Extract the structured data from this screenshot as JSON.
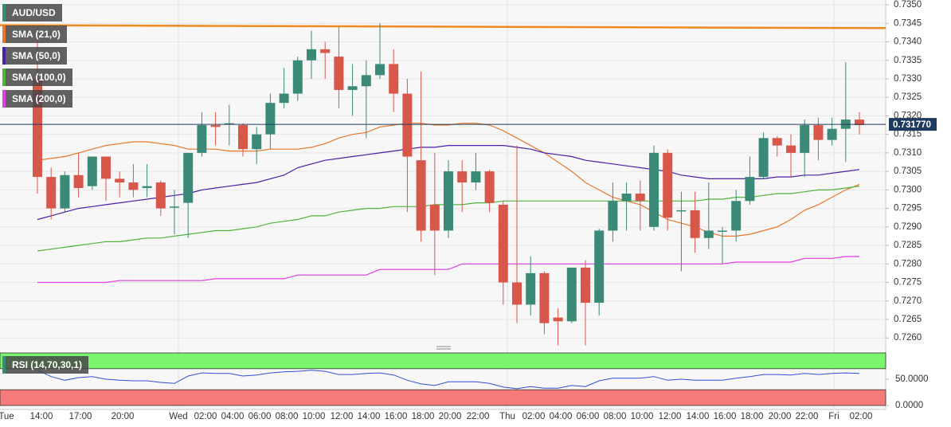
{
  "chart_data": {
    "type": "candlestick",
    "symbol": "AUD/USD",
    "up_color": "#3b8a78",
    "down_color": "#d7574b",
    "ylim": [
      0.72566,
      0.73513
    ],
    "yticks": [
      {
        "value": 0.735,
        "label": "0.7350"
      },
      {
        "value": 0.7345,
        "label": "0.7345"
      },
      {
        "value": 0.734,
        "label": "0.7340"
      },
      {
        "value": 0.7335,
        "label": "0.7335"
      },
      {
        "value": 0.733,
        "label": "0.7330"
      },
      {
        "value": 0.7325,
        "label": "0.7325"
      },
      {
        "value": 0.732,
        "label": "0.7320"
      },
      {
        "value": 0.7315,
        "label": "0.7315"
      },
      {
        "value": 0.731,
        "label": "0.7310"
      },
      {
        "value": 0.7305,
        "label": "0.7305"
      },
      {
        "value": 0.73,
        "label": "0.7300"
      },
      {
        "value": 0.7295,
        "label": "0.7295"
      },
      {
        "value": 0.729,
        "label": "0.7290"
      },
      {
        "value": 0.7285,
        "label": "0.7285"
      },
      {
        "value": 0.728,
        "label": "0.7280"
      },
      {
        "value": 0.7275,
        "label": "0.7275"
      },
      {
        "value": 0.727,
        "label": "0.7270"
      },
      {
        "value": 0.7265,
        "label": "0.7265"
      },
      {
        "value": 0.726,
        "label": "0.7260"
      }
    ],
    "grid": true,
    "last_price": {
      "value": 0.73177,
      "label": "0.731770"
    },
    "xlabels": [
      "Tue",
      "14:00",
      "17:00",
      "20:00",
      "Wed",
      "02:00",
      "04:00",
      "06:00",
      "08:00",
      "10:00",
      "12:00",
      "14:00",
      "16:00",
      "18:00",
      "20:00",
      "22:00",
      "Thu",
      "02:00",
      "04:00",
      "06:00",
      "08:00",
      "10:00",
      "12:00",
      "14:00",
      "16:00",
      "18:00",
      "20:00",
      "22:00",
      "Fri",
      "02:00"
    ],
    "candles": {
      "open": [
        0.733,
        0.73035,
        0.7295,
        0.7304,
        0.7301,
        0.7309,
        0.7303,
        0.7302,
        0.73005,
        0.7302,
        0.72955,
        0.72965,
        0.731,
        0.73175,
        0.7318,
        0.73175,
        0.7311,
        0.7315,
        0.73235,
        0.7326,
        0.7335,
        0.7338,
        0.7336,
        0.7327,
        0.7328,
        0.7331,
        0.7334,
        0.7326,
        0.7308,
        0.7296,
        0.7289,
        0.7305,
        0.7302,
        0.7305,
        0.7296,
        0.7275,
        0.7269,
        0.72775,
        0.72655,
        0.72645,
        0.7279,
        0.72695,
        0.7289,
        0.7297,
        0.7299,
        0.729,
        0.731,
        0.72945,
        0.72945,
        0.7287,
        0.7289,
        0.7289,
        0.7297,
        0.73035,
        0.7314,
        0.7312,
        0.731,
        0.73175,
        0.73135,
        0.73165,
        0.7319
      ],
      "high": [
        0.7344,
        0.7306,
        0.7305,
        0.731,
        0.7309,
        0.7309,
        0.7305,
        0.7307,
        0.7307,
        0.73025,
        0.73,
        0.731,
        0.7321,
        0.7321,
        0.7323,
        0.7318,
        0.7317,
        0.7326,
        0.7333,
        0.7336,
        0.7343,
        0.734,
        0.7344,
        0.7334,
        0.7335,
        0.7345,
        0.7338,
        0.733,
        0.7332,
        0.731,
        0.7308,
        0.7308,
        0.731,
        0.73055,
        0.7297,
        0.7312,
        0.7282,
        0.7278,
        0.7268,
        0.7279,
        0.7281,
        0.72895,
        0.7302,
        0.7302,
        0.73025,
        0.7312,
        0.7311,
        0.72995,
        0.72995,
        0.7302,
        0.729,
        0.73,
        0.7309,
        0.73155,
        0.73145,
        0.7315,
        0.7319,
        0.73195,
        0.73195,
        0.73345,
        0.7321
      ],
      "low": [
        0.7299,
        0.7292,
        0.7294,
        0.7298,
        0.73,
        0.7297,
        0.7298,
        0.7298,
        0.7298,
        0.7293,
        0.7288,
        0.7287,
        0.7309,
        0.7312,
        0.7312,
        0.7309,
        0.7307,
        0.7311,
        0.7322,
        0.7324,
        0.733,
        0.733,
        0.7322,
        0.732,
        0.7314,
        0.733,
        0.7321,
        0.7294,
        0.7286,
        0.7277,
        0.7287,
        0.7294,
        0.73,
        0.7294,
        0.7269,
        0.7264,
        0.7266,
        0.7261,
        0.7258,
        0.7264,
        0.7258,
        0.7266,
        0.7286,
        0.7289,
        0.7289,
        0.7289,
        0.7289,
        0.7278,
        0.7283,
        0.7284,
        0.728,
        0.7286,
        0.7296,
        0.7303,
        0.7309,
        0.73035,
        0.73035,
        0.7308,
        0.7312,
        0.73075,
        0.7315
      ],
      "close": [
        0.73035,
        0.7295,
        0.7304,
        0.73005,
        0.7309,
        0.7303,
        0.7302,
        0.73,
        0.7301,
        0.7295,
        0.72955,
        0.731,
        0.73175,
        0.7317,
        0.7318,
        0.7311,
        0.7315,
        0.73235,
        0.7326,
        0.7335,
        0.7338,
        0.7337,
        0.7327,
        0.7328,
        0.7331,
        0.7334,
        0.7326,
        0.7309,
        0.7289,
        0.7289,
        0.7305,
        0.7302,
        0.7305,
        0.72965,
        0.7275,
        0.7269,
        0.72775,
        0.7264,
        0.72645,
        0.7279,
        0.72695,
        0.7289,
        0.7297,
        0.7299,
        0.7297,
        0.731,
        0.72925,
        0.72945,
        0.7287,
        0.7289,
        0.7289,
        0.7297,
        0.73035,
        0.7314,
        0.7312,
        0.731,
        0.73175,
        0.73135,
        0.73165,
        0.7319,
        0.73175
      ]
    },
    "trendline": {
      "color": "#f08a1e",
      "start": 0.73445,
      "end": 0.73437
    },
    "series": [
      {
        "name": "SMA (21,0)",
        "color": "#e8772a",
        "values": [
          0.7308,
          0.73085,
          0.7309,
          0.731,
          0.7311,
          0.7312,
          0.73125,
          0.7313,
          0.7313,
          0.73125,
          0.7312,
          0.7311,
          0.7311,
          0.7311,
          0.73105,
          0.73105,
          0.73105,
          0.7311,
          0.7311,
          0.7311,
          0.73115,
          0.73125,
          0.7314,
          0.7315,
          0.73155,
          0.7317,
          0.73175,
          0.7318,
          0.7318,
          0.73175,
          0.73175,
          0.7318,
          0.7318,
          0.73175,
          0.7316,
          0.7314,
          0.7312,
          0.731,
          0.73075,
          0.7305,
          0.7302,
          0.73,
          0.7298,
          0.7297,
          0.7296,
          0.7294,
          0.7292,
          0.7291,
          0.729,
          0.72885,
          0.72875,
          0.72875,
          0.7288,
          0.7289,
          0.729,
          0.7292,
          0.72945,
          0.7296,
          0.7298,
          0.73,
          0.73015
        ]
      },
      {
        "name": "SMA (50,0)",
        "color": "#4b1fa6",
        "values": [
          0.7292,
          0.7293,
          0.7294,
          0.7295,
          0.72955,
          0.7296,
          0.72965,
          0.7297,
          0.72975,
          0.7298,
          0.72985,
          0.7299,
          0.73,
          0.73005,
          0.7301,
          0.73015,
          0.7302,
          0.7303,
          0.7304,
          0.7306,
          0.7307,
          0.7308,
          0.73085,
          0.7309,
          0.73095,
          0.731,
          0.73105,
          0.7311,
          0.73115,
          0.73115,
          0.7312,
          0.7312,
          0.7312,
          0.7312,
          0.7312,
          0.73115,
          0.7311,
          0.731,
          0.73095,
          0.7309,
          0.7308,
          0.73075,
          0.7307,
          0.73065,
          0.7306,
          0.73055,
          0.7305,
          0.7304,
          0.73035,
          0.7303,
          0.7303,
          0.7303,
          0.7303,
          0.7303,
          0.73035,
          0.73035,
          0.7304,
          0.7304,
          0.73045,
          0.7305,
          0.73055
        ]
      },
      {
        "name": "SMA (100,0)",
        "color": "#52b33a",
        "values": [
          0.72835,
          0.7284,
          0.72845,
          0.7285,
          0.72855,
          0.7286,
          0.7286,
          0.72865,
          0.7287,
          0.7287,
          0.72875,
          0.7288,
          0.72885,
          0.7289,
          0.7289,
          0.72895,
          0.729,
          0.7291,
          0.72915,
          0.7292,
          0.7293,
          0.7293,
          0.7294,
          0.72945,
          0.7295,
          0.7295,
          0.72955,
          0.72955,
          0.72955,
          0.7296,
          0.7296,
          0.7296,
          0.72965,
          0.72965,
          0.7297,
          0.7297,
          0.7297,
          0.7297,
          0.7297,
          0.7297,
          0.7297,
          0.7297,
          0.7297,
          0.7297,
          0.7297,
          0.7297,
          0.7297,
          0.7297,
          0.7297,
          0.72975,
          0.72975,
          0.7298,
          0.7298,
          0.72985,
          0.7299,
          0.7299,
          0.72995,
          0.73,
          0.73,
          0.73005,
          0.7301
        ]
      },
      {
        "name": "SMA (200,0)",
        "color": "#e03ce0",
        "values": [
          0.7275,
          0.7275,
          0.7275,
          0.7275,
          0.7275,
          0.7275,
          0.72755,
          0.72755,
          0.72755,
          0.72755,
          0.72755,
          0.72755,
          0.72755,
          0.7276,
          0.7276,
          0.7276,
          0.7276,
          0.7276,
          0.7276,
          0.7277,
          0.7277,
          0.7277,
          0.7277,
          0.7277,
          0.7277,
          0.72785,
          0.72785,
          0.72785,
          0.72785,
          0.72785,
          0.72785,
          0.728,
          0.728,
          0.728,
          0.728,
          0.728,
          0.728,
          0.728,
          0.728,
          0.728,
          0.728,
          0.728,
          0.728,
          0.728,
          0.728,
          0.728,
          0.728,
          0.728,
          0.728,
          0.728,
          0.728,
          0.72805,
          0.72805,
          0.72805,
          0.72805,
          0.72805,
          0.72815,
          0.72815,
          0.72815,
          0.7282,
          0.7282
        ]
      }
    ],
    "rsi": {
      "name": "RSI (14,70,30,1)",
      "color": "#2f4fd0",
      "ylim": [
        0,
        100
      ],
      "yticks": [
        {
          "value": 50,
          "label": "50.0000"
        },
        {
          "value": 0,
          "label": "0.0000"
        }
      ],
      "overbought": 70,
      "oversold": 30,
      "values": [
        67,
        55,
        48,
        53,
        55,
        50,
        48,
        47,
        47,
        44,
        42,
        56,
        62,
        61,
        61,
        56,
        58,
        62,
        64,
        65,
        67,
        65,
        59,
        59,
        61,
        62,
        58,
        48,
        41,
        38,
        45,
        45,
        45,
        42,
        35,
        32,
        36,
        33,
        33,
        38,
        36,
        47,
        52,
        52,
        52,
        55,
        48,
        50,
        48,
        48,
        48,
        52,
        55,
        59,
        59,
        58,
        61,
        59,
        61,
        62,
        61
      ]
    }
  }
}
